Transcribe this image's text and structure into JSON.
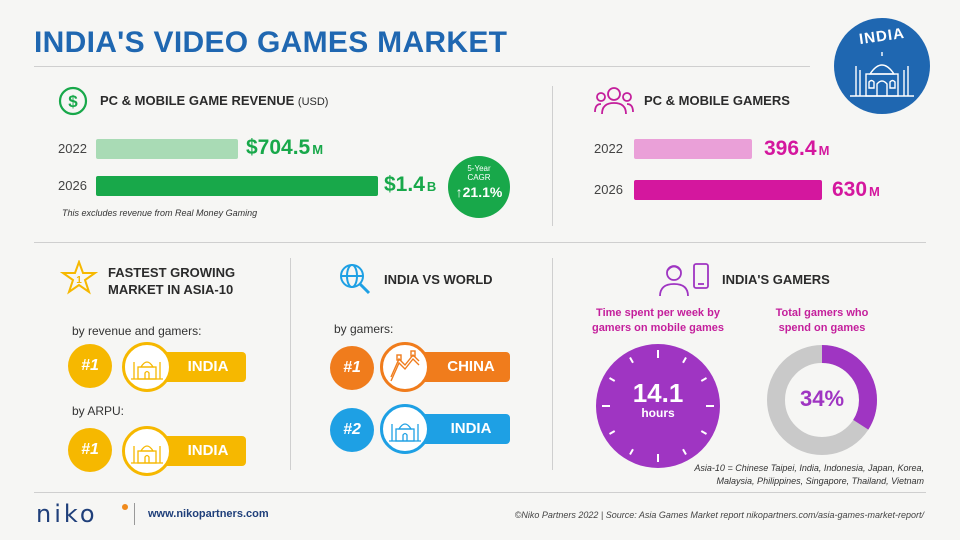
{
  "title": "INDIA'S VIDEO GAMES MARKET",
  "badge": "INDIA",
  "colors": {
    "blue": "#1f67b1",
    "green_light": "#a9dbb5",
    "green": "#18a84a",
    "pink_light": "#eaa0d8",
    "magenta": "#d4179e",
    "purple": "#9f35c2",
    "yellow": "#f6b800",
    "orange": "#f07c1c",
    "light_blue": "#1ea0e4",
    "gray": "#c9c9c9"
  },
  "revenue": {
    "heading": "PC & MOBILE GAME REVENUE",
    "heading_unit": "(USD)",
    "rows": [
      {
        "year": "2022",
        "value": 704.5,
        "label": "$704.5",
        "unit": "M"
      },
      {
        "year": "2026",
        "value": 1400,
        "label": "$1.4",
        "unit": "B"
      }
    ],
    "cagr_line1": "5-Year",
    "cagr_line2": "CAGR",
    "cagr_value": "21.1%",
    "note": "This excludes revenue from Real Money Gaming"
  },
  "gamers": {
    "heading": "PC & MOBILE GAMERS",
    "rows": [
      {
        "year": "2022",
        "value": 396.4,
        "label": "396.4",
        "unit": "M"
      },
      {
        "year": "2026",
        "value": 630,
        "label": "630",
        "unit": "M"
      }
    ]
  },
  "fastest": {
    "heading_line1": "FASTEST GROWING",
    "heading_line2": "MARKET IN ASIA-10",
    "by_revenue_label": "by revenue and gamers:",
    "by_revenue_rank": "#1",
    "by_revenue_country": "INDIA",
    "by_arpu_label": "by ARPU:",
    "by_arpu_rank": "#1",
    "by_arpu_country": "INDIA"
  },
  "world": {
    "heading": "INDIA VS WORLD",
    "by_gamers_label": "by gamers:",
    "rank1": "#1",
    "rank1_country": "CHINA",
    "rank2": "#2",
    "rank2_country": "INDIA"
  },
  "india_gamers": {
    "heading": "INDIA'S GAMERS",
    "time_caption_line1": "Time spent per week by",
    "time_caption_line2": "gamers on mobile games",
    "time_value": "14.1",
    "time_unit": "hours",
    "spend_caption_line1": "Total gamers who",
    "spend_caption_line2": "spend on games",
    "spend_value": "34%",
    "spend_fraction": 0.34
  },
  "asia_note_line1": "Asia-10 = Chinese Taipei, India, Indonesia, Japan, Korea,",
  "asia_note_line2": "Malaysia, Philippines, Singapore, Thailand, Vietnam",
  "footer": {
    "logo": "NIKO",
    "website": "www.nikopartners.com",
    "source": "©Niko Partners 2022 | Source: Asia Games Market report nikopartners.com/asia-games-market-report/"
  }
}
